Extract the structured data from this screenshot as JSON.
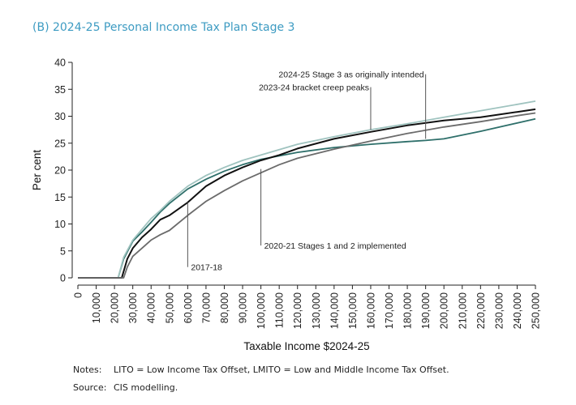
{
  "title": "(B) 2024-25 Personal Income Tax Plan Stage 3",
  "chart_data": {
    "type": "line",
    "xlabel": "Taxable Income $2024-25",
    "ylabel": "Per cent",
    "xlim": [
      0,
      250000
    ],
    "ylim": [
      0,
      40
    ],
    "x_ticks": [
      0,
      10000,
      20000,
      30000,
      40000,
      50000,
      60000,
      70000,
      80000,
      90000,
      100000,
      110000,
      120000,
      130000,
      140000,
      150000,
      160000,
      170000,
      180000,
      190000,
      200000,
      210000,
      220000,
      230000,
      240000,
      250000
    ],
    "x_tick_labels": [
      "0",
      "10,000",
      "20,000",
      "30,000",
      "40,000",
      "50,000",
      "60,000",
      "70,000",
      "80,000",
      "90,000",
      "100,000",
      "110,000",
      "120,000",
      "130,000",
      "140,000",
      "150,000",
      "160,000",
      "170,000",
      "180,000",
      "190,000",
      "200,000",
      "210,000",
      "220,000",
      "230,000",
      "240,000",
      "250,000"
    ],
    "y_ticks": [
      0,
      5,
      10,
      15,
      20,
      25,
      30,
      35,
      40
    ],
    "y_tick_labels": [
      "0",
      "5",
      "10",
      "15",
      "20",
      "25",
      "30",
      "35",
      "40"
    ],
    "grid": false,
    "series": [
      {
        "name": "2024-25 Stage 3 as originally intended",
        "color": "#2e6f6a",
        "x": [
          0,
          22000,
          25000,
          30000,
          35000,
          40000,
          45000,
          50000,
          60000,
          70000,
          80000,
          90000,
          100000,
          120000,
          140000,
          160000,
          180000,
          190000,
          200000,
          220000,
          250000
        ],
        "y": [
          0,
          0,
          3.5,
          6.8,
          8.5,
          10.3,
          12.2,
          13.8,
          16.5,
          18.3,
          19.8,
          21,
          22,
          23.3,
          24.2,
          24.8,
          25.3,
          25.5,
          25.8,
          27.2,
          29.5
        ]
      },
      {
        "name": "2023-24 bracket creep peaks",
        "color": "#9fc3bf",
        "x": [
          0,
          22000,
          25000,
          30000,
          35000,
          40000,
          45000,
          50000,
          60000,
          70000,
          80000,
          90000,
          100000,
          120000,
          140000,
          160000,
          180000,
          200000,
          220000,
          250000
        ],
        "y": [
          0,
          0,
          3.8,
          7,
          9,
          11,
          12.5,
          14.2,
          17,
          19,
          20.5,
          21.8,
          22.8,
          24.8,
          26.2,
          27.5,
          28.6,
          29.8,
          31,
          32.8
        ]
      },
      {
        "name": "2017-18",
        "color": "#111111",
        "x": [
          0,
          24000,
          27000,
          30000,
          35000,
          40000,
          45000,
          50000,
          55000,
          60000,
          70000,
          80000,
          90000,
          100000,
          110000,
          120000,
          140000,
          160000,
          180000,
          200000,
          220000,
          240000,
          250000
        ],
        "y": [
          0,
          0,
          3.5,
          5.5,
          7.5,
          9,
          10.8,
          11.6,
          12.8,
          14,
          17,
          19,
          20.5,
          21.8,
          22.8,
          24,
          25.8,
          27.1,
          28.3,
          29.2,
          29.8,
          30.8,
          31.3
        ]
      },
      {
        "name": "2020-21 Stages 1 and 2 implemented",
        "color": "#6b6b6b",
        "x": [
          0,
          25000,
          27000,
          30000,
          35000,
          40000,
          45000,
          50000,
          60000,
          70000,
          80000,
          90000,
          100000,
          110000,
          120000,
          140000,
          160000,
          180000,
          200000,
          220000,
          240000,
          250000
        ],
        "y": [
          0,
          0,
          2,
          4,
          5.5,
          7,
          8,
          8.8,
          11.6,
          14.2,
          16.2,
          18,
          19.5,
          21,
          22.2,
          23.9,
          25.4,
          26.8,
          28,
          29,
          30.1,
          30.6
        ]
      }
    ],
    "annotations": [
      {
        "text": "2024-25 Stage 3 as originally intended",
        "x": 190000,
        "y": 25.8,
        "label_x": 190000,
        "label_y": 37.8
      },
      {
        "text": "2023-24 bracket creep peaks",
        "x": 160000,
        "y": 27.5,
        "label_x": 160000,
        "label_y": 35.4
      },
      {
        "text": "2020-21 Stages 1 and 2 implemented",
        "x": 100000,
        "y": 20.2,
        "label_x": 100000,
        "label_y": 6
      },
      {
        "text": "2017-18",
        "x": 60000,
        "y": 14,
        "label_x": 60000,
        "label_y": 2
      }
    ]
  },
  "notes": {
    "notes_key": "Notes:",
    "notes_text": "LITO = Low Income Tax Offset, LMITO = Low and Middle Income Tax Offset.",
    "source_key": "Source:",
    "source_text": "CIS modelling."
  }
}
